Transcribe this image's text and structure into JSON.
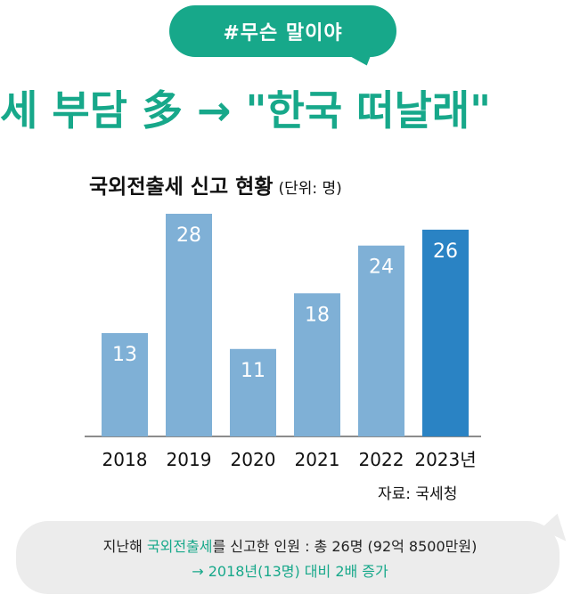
{
  "tag": {
    "text": "#무슨 말이야"
  },
  "headline": {
    "text": "세 부담 多 → \"한국 떠날래\""
  },
  "chart_data": {
    "type": "bar",
    "title": "국외전출세 신고 현황",
    "unit": "(단위: 명)",
    "categories": [
      "2018",
      "2019",
      "2020",
      "2021",
      "2022",
      "2023년"
    ],
    "values": [
      13,
      28,
      11,
      18,
      24,
      26
    ],
    "ylim": [
      0,
      28
    ],
    "grid": false,
    "bar_color": "#7fb0d6",
    "highlight_color": "#2a83c4",
    "highlight_index": 5
  },
  "source": "자료: 국세청",
  "note": {
    "line1_before": "지난해 ",
    "line1_accent": "국외전출세",
    "line1_after": "를 신고한 인원 : 총 26명 (92억 8500만원)",
    "line2": "→ 2018년(13명) 대비 2배 증가"
  },
  "colors": {
    "brand": "#17a88a",
    "note_bg": "#ececec"
  }
}
